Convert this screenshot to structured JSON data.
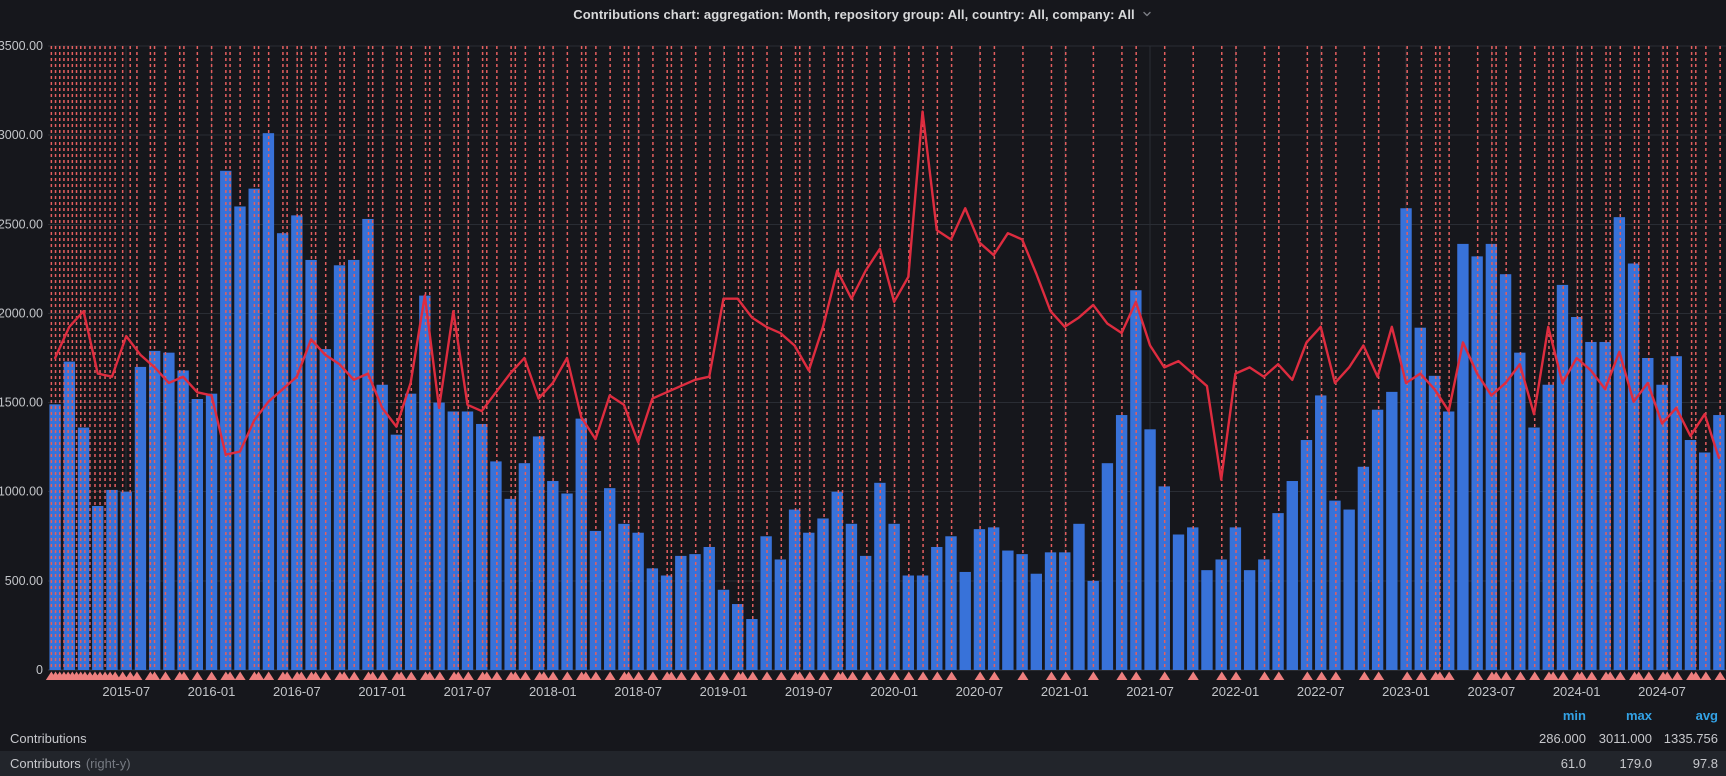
{
  "title": {
    "text": "Contributions chart: aggregation: Month, repository group: All, country: All, company: All"
  },
  "colors": {
    "background": "#16171C",
    "grid": "#2A2D34",
    "zero_axis": "#3A3D45",
    "axis_text": "#C3C5C9",
    "bar": "#3872D9",
    "line": "#DE2C3F",
    "annotation_line": "#E45F5F",
    "annotation_marker": "#ED7F7E",
    "legend_header": "#33A2E5",
    "row_alt_background": "#22252B",
    "title_text": "#D8D9DA",
    "dim_text": "#767A82"
  },
  "y_axis": {
    "min": 0,
    "max": 3500,
    "ticks": [
      {
        "v": 3500,
        "label": "3500.00"
      },
      {
        "v": 3000,
        "label": "3000.00"
      },
      {
        "v": 2500,
        "label": "2500.00"
      },
      {
        "v": 2000,
        "label": "2000.00"
      },
      {
        "v": 1500,
        "label": "1500.00"
      },
      {
        "v": 1000,
        "label": "1000.00"
      },
      {
        "v": 500,
        "label": "500.00"
      },
      {
        "v": 0,
        "label": "0"
      }
    ]
  },
  "x_axis": {
    "ticks": [
      "2015-07",
      "2016-01",
      "2016-07",
      "2017-01",
      "2017-07",
      "2018-01",
      "2018-07",
      "2019-01",
      "2019-07",
      "2020-01",
      "2020-07",
      "2021-01",
      "2021-07",
      "2022-01",
      "2022-07",
      "2023-01",
      "2023-07",
      "2024-01",
      "2024-07"
    ]
  },
  "chart_data": {
    "type": "bar",
    "subtype": "bar+line combo with vertical event annotations",
    "aggregation": "Month",
    "x": [
      "2015-02",
      "2015-03",
      "2015-04",
      "2015-05",
      "2015-06",
      "2015-07",
      "2015-08",
      "2015-09",
      "2015-10",
      "2015-11",
      "2015-12",
      "2016-01",
      "2016-02",
      "2016-03",
      "2016-04",
      "2016-05",
      "2016-06",
      "2016-07",
      "2016-08",
      "2016-09",
      "2016-10",
      "2016-11",
      "2016-12",
      "2017-01",
      "2017-02",
      "2017-03",
      "2017-04",
      "2017-05",
      "2017-06",
      "2017-07",
      "2017-08",
      "2017-09",
      "2017-10",
      "2017-11",
      "2017-12",
      "2018-01",
      "2018-02",
      "2018-03",
      "2018-04",
      "2018-05",
      "2018-06",
      "2018-07",
      "2018-08",
      "2018-09",
      "2018-10",
      "2018-11",
      "2018-12",
      "2019-01",
      "2019-02",
      "2019-03",
      "2019-04",
      "2019-05",
      "2019-06",
      "2019-07",
      "2019-08",
      "2019-09",
      "2019-10",
      "2019-11",
      "2019-12",
      "2020-01",
      "2020-02",
      "2020-03",
      "2020-04",
      "2020-05",
      "2020-06",
      "2020-07",
      "2020-08",
      "2020-09",
      "2020-10",
      "2020-11",
      "2020-12",
      "2021-01",
      "2021-02",
      "2021-03",
      "2021-04",
      "2021-05",
      "2021-06",
      "2021-07",
      "2021-08",
      "2021-09",
      "2021-10",
      "2021-11",
      "2021-12",
      "2022-01",
      "2022-02",
      "2022-03",
      "2022-04",
      "2022-05",
      "2022-06",
      "2022-07",
      "2022-08",
      "2022-09",
      "2022-10",
      "2022-11",
      "2022-12",
      "2023-01",
      "2023-02",
      "2023-03",
      "2023-04",
      "2023-05",
      "2023-06",
      "2023-07",
      "2023-08",
      "2023-09",
      "2023-10",
      "2023-11",
      "2023-12",
      "2024-01",
      "2024-02",
      "2024-03",
      "2024-04",
      "2024-05",
      "2024-06",
      "2024-07",
      "2024-08",
      "2024-09",
      "2024-10",
      "2024-11"
    ],
    "series": [
      {
        "name": "Contributions",
        "type": "bar",
        "axis": "left",
        "color": "#3872D9",
        "values": [
          1490,
          1730,
          1360,
          920,
          1010,
          1000,
          1700,
          1790,
          1780,
          1680,
          1520,
          1550,
          2800,
          2600,
          2700,
          3011,
          2450,
          2550,
          2300,
          1800,
          2270,
          2300,
          2530,
          1600,
          1320,
          1550,
          2100,
          1500,
          1450,
          1450,
          1380,
          1170,
          960,
          1160,
          1310,
          1060,
          990,
          1410,
          780,
          1020,
          820,
          770,
          570,
          530,
          640,
          650,
          690,
          450,
          370,
          286,
          750,
          620,
          900,
          770,
          850,
          1000,
          820,
          640,
          1050,
          820,
          530,
          530,
          690,
          750,
          550,
          790,
          800,
          670,
          650,
          540,
          660,
          660,
          820,
          500,
          1160,
          1430,
          2130,
          1350,
          1030,
          760,
          800,
          560,
          620,
          800,
          560,
          620,
          880,
          1060,
          1290,
          1540,
          950,
          900,
          1140,
          1460,
          1560,
          2590,
          1920,
          1650,
          1450,
          2390,
          2320,
          2390,
          2220,
          1780,
          1360,
          1600,
          2160,
          1980,
          1840,
          1840,
          2540,
          2280,
          1750,
          1600,
          1760,
          1290,
          1220,
          1430
        ]
      },
      {
        "name": "Contributors",
        "type": "line",
        "axis": "right",
        "color": "#DE2C3F",
        "values": [
          100,
          110,
          115,
          95,
          94,
          107,
          101,
          97,
          92,
          94,
          89,
          88,
          69,
          70,
          80,
          86,
          90,
          94,
          106,
          101,
          98,
          93,
          95,
          84,
          78,
          92,
          120,
          84,
          115,
          85,
          83,
          89,
          95,
          100,
          87,
          92,
          100,
          81,
          74,
          88,
          85,
          73,
          87,
          89,
          91,
          93,
          94,
          119,
          119,
          113,
          110,
          108,
          104,
          96,
          110,
          128,
          119,
          128,
          135,
          118,
          126,
          179,
          141,
          138,
          148,
          137,
          133,
          140,
          138,
          127,
          115,
          110,
          113,
          117,
          111,
          108,
          118,
          104,
          97,
          99,
          95,
          91,
          61,
          95,
          97,
          94,
          98,
          93,
          105,
          110,
          92,
          97,
          104,
          94,
          110,
          92,
          95,
          90,
          83,
          105,
          95,
          88,
          92,
          98,
          82,
          110,
          92,
          100,
          96,
          90,
          102,
          86,
          92,
          79,
          84,
          75,
          82,
          68
        ]
      }
    ],
    "left_axis": {
      "min": 0,
      "max": 3500
    },
    "right_axis": {
      "min": 0,
      "max": 200,
      "labels_visible": false
    },
    "grid": true,
    "legend_position": "bottom-table",
    "annotations_pct": [
      0.2,
      0.45,
      0.7,
      0.95,
      1.2,
      1.45,
      1.7,
      1.95,
      2.2,
      2.5,
      2.8,
      3.1,
      3.4,
      3.7,
      4.0,
      4.45,
      4.9,
      5.3,
      6.1,
      6.35,
      7.0,
      7.85,
      8.1,
      8.9,
      9.75,
      10.6,
      10.85,
      11.45,
      12.3,
      12.55,
      13.15,
      14.0,
      14.25,
      14.85,
      15.1,
      15.7,
      15.95,
      16.55,
      17.4,
      17.65,
      18.25,
      19.1,
      19.35,
      19.95,
      20.8,
      21.05,
      21.65,
      22.5,
      22.75,
      23.35,
      24.2,
      24.45,
      25.05,
      25.9,
      26.15,
      26.75,
      27.6,
      27.85,
      28.45,
      29.3,
      29.55,
      30.1,
      30.95,
      31.8,
      32.05,
      32.65,
      33.5,
      34.35,
      34.6,
      35.2,
      36.05,
      36.9,
      37.15,
      37.75,
      38.6,
      39.45,
      40.3,
      41.15,
      41.4,
      42.0,
      42.85,
      43.7,
      44.55,
      44.8,
      45.4,
      46.25,
      47.1,
      47.35,
      47.95,
      48.8,
      49.6,
      50.45,
      51.3,
      52.15,
      53.0,
      53.85,
      55.55,
      56.4,
      58.1,
      59.8,
      60.65,
      62.3,
      64.0,
      64.85,
      66.55,
      68.25,
      69.95,
      70.8,
      72.5,
      73.35,
      75.05,
      75.9,
      76.75,
      78.45,
      79.3,
      81.0,
      81.85,
      82.7,
      82.95,
      83.5,
      85.2,
      86.05,
      86.3,
      86.9,
      87.75,
      88.6,
      89.45,
      89.7,
      90.3,
      91.15,
      91.4,
      92.0,
      92.85,
      93.1,
      93.7,
      94.55,
      94.8,
      95.4,
      96.25,
      96.5,
      97.1,
      97.95,
      98.2,
      98.8,
      99.65
    ]
  },
  "legend": {
    "columns": [
      "min",
      "max",
      "avg"
    ],
    "rows": [
      {
        "label": "Contributions",
        "suffix": "",
        "min": "286.000",
        "max": "3011.000",
        "avg": "1335.756"
      },
      {
        "label": "Contributors",
        "suffix": "(right-y)",
        "min": "61.0",
        "max": "179.0",
        "avg": "97.8"
      }
    ]
  }
}
